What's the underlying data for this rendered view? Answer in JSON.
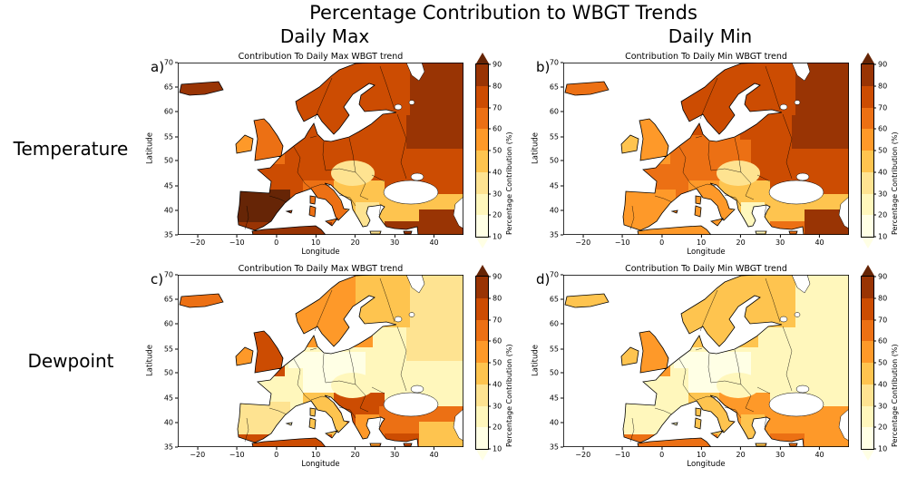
{
  "figure": {
    "title": "Percentage Contribution to WBGT Trends",
    "column_headers": [
      "Daily Max",
      "Daily Min"
    ],
    "row_labels": [
      "Temperature",
      "Dewpoint"
    ]
  },
  "axes": {
    "x_label": "Longitude",
    "y_label": "Latitude",
    "x_ticks": [
      {
        "label": "−20",
        "pos": 6.9
      },
      {
        "label": "−10",
        "pos": 20.7
      },
      {
        "label": "0",
        "pos": 34.5
      },
      {
        "label": "10",
        "pos": 48.3
      },
      {
        "label": "20",
        "pos": 62.1
      },
      {
        "label": "30",
        "pos": 75.9
      },
      {
        "label": "40",
        "pos": 89.7
      }
    ],
    "y_ticks": [
      {
        "label": "70",
        "pos": 0
      },
      {
        "label": "65",
        "pos": 14.3
      },
      {
        "label": "60",
        "pos": 28.6
      },
      {
        "label": "55",
        "pos": 42.9
      },
      {
        "label": "50",
        "pos": 57.1
      },
      {
        "label": "45",
        "pos": 71.4
      },
      {
        "label": "40",
        "pos": 85.7
      },
      {
        "label": "35",
        "pos": 100
      }
    ]
  },
  "colorbar": {
    "label": "Percentage Contribution (%)",
    "ticks": [
      {
        "label": "90",
        "pos": 0
      },
      {
        "label": "80",
        "pos": 12.5
      },
      {
        "label": "70",
        "pos": 25
      },
      {
        "label": "60",
        "pos": 37.5
      },
      {
        "label": "50",
        "pos": 50
      },
      {
        "label": "40",
        "pos": 62.5
      },
      {
        "label": "30",
        "pos": 75
      },
      {
        "label": "20",
        "pos": 87.5
      },
      {
        "label": "10",
        "pos": 100
      }
    ],
    "colors_top_to_bottom": [
      "#993404",
      "#cc4c02",
      "#ec7014",
      "#fe9929",
      "#fec44f",
      "#fee391",
      "#fff7bc",
      "#ffffe5"
    ],
    "over_color": "#662506",
    "under_color": "#ffffe5"
  },
  "panels": [
    {
      "letter": "a)",
      "title": "Contribution To Daily Max WBGT trend",
      "region_colors": {
        "base": "#cc4c02",
        "east_europe": "#cc4c02",
        "ne_russia": "#993404",
        "scandinavia": "#cc4c02",
        "finland": "#cc4c02",
        "central": "#cc4c02",
        "france": "#cc4c02",
        "iberia": "#662506",
        "italy": "#ec7014",
        "balkans": "#fec44f",
        "pannonia": "#fee391",
        "greece": "#fee391",
        "turkey": "#fec44f",
        "turkey_south": "#993404",
        "mideast": "#993404",
        "africa": "#993404",
        "britain": "#ec7014",
        "ireland": "#fe9929",
        "iceland": "#993404"
      }
    },
    {
      "letter": "b)",
      "title": "Contribution To Daily Min WBGT trend",
      "region_colors": {
        "base": "#ec7014",
        "east_europe": "#cc4c02",
        "ne_russia": "#993404",
        "scandinavia": "#cc4c02",
        "finland": "#cc4c02",
        "central": "#ec7014",
        "france": "#ec7014",
        "iberia": "#fe9929",
        "italy": "#fe9929",
        "balkans": "#fec44f",
        "pannonia": "#fee391",
        "greece": "#fff7bc",
        "turkey": "#fec44f",
        "turkey_south": "#ec7014",
        "mideast": "#993404",
        "africa": "#fe9929",
        "britain": "#fe9929",
        "ireland": "#fec44f",
        "iceland": "#ec7014"
      }
    },
    {
      "letter": "c)",
      "title": "Contribution To Daily Max WBGT trend",
      "region_colors": {
        "base": "#fff7bc",
        "east_europe": "#fff7bc",
        "ne_russia": "#fee391",
        "scandinavia": "#fe9929",
        "finland": "#fec44f",
        "central": "#ffffe5",
        "france": "#fff7bc",
        "iberia": "#fee391",
        "italy": "#fec44f",
        "balkans": "#cc4c02",
        "pannonia": "#fff7bc",
        "greece": "#fe9929",
        "turkey": "#ec7014",
        "turkey_south": "#cc4c02",
        "mideast": "#fec44f",
        "africa": "#cc4c02",
        "britain": "#cc4c02",
        "ireland": "#fe9929",
        "iceland": "#ec7014"
      }
    },
    {
      "letter": "d)",
      "title": "Contribution To Daily Min WBGT trend",
      "region_colors": {
        "base": "#fff7bc",
        "east_europe": "#fff7bc",
        "ne_russia": "#fff7bc",
        "scandinavia": "#fec44f",
        "finland": "#fec44f",
        "central": "#ffffe5",
        "france": "#fff7bc",
        "iberia": "#fff7bc",
        "italy": "#fec44f",
        "balkans": "#fe9929",
        "pannonia": "#fff7bc",
        "greece": "#fec44f",
        "turkey": "#fe9929",
        "turkey_south": "#ec7014",
        "mideast": "#fe9929",
        "africa": "#ec7014",
        "britain": "#fe9929",
        "ireland": "#fec44f",
        "iceland": "#fec44f"
      }
    }
  ],
  "chart_data": {
    "type": "heatmap",
    "figure_title": "Percentage Contribution to WBGT Trends",
    "colormap": "YlOrBr (pale yellow = low %, dark brown = high %)",
    "colorbar_label": "Percentage Contribution (%)",
    "colorbar_ticks": [
      10,
      20,
      30,
      40,
      50,
      60,
      70,
      80,
      90
    ],
    "xlabel": "Longitude",
    "ylabel": "Latitude",
    "xlim": [
      -25,
      47.5
    ],
    "ylim": [
      35,
      70
    ],
    "x_ticks": [
      -20,
      -10,
      0,
      10,
      20,
      30,
      40
    ],
    "y_ticks": [
      35,
      40,
      45,
      50,
      55,
      60,
      65,
      70
    ],
    "panels": [
      {
        "id": "a",
        "row": "Temperature",
        "column": "Daily Max",
        "title": "Contribution To Daily Max WBGT trend",
        "approx_values_percent": {
          "Iberia": 85,
          "France": 75,
          "British Isles": 65,
          "Ireland": 55,
          "Iceland": 80,
          "Scandinavia": 75,
          "NE Europe / Russia": 80,
          "Central Europe": 75,
          "Pannonian Basin": 35,
          "Balkans": 45,
          "Greece": 35,
          "Turkey": 45,
          "Southern Turkey coast": 85,
          "North Africa": 85
        }
      },
      {
        "id": "b",
        "row": "Temperature",
        "column": "Daily Min",
        "title": "Contribution To Daily Min WBGT trend",
        "approx_values_percent": {
          "Iberia": 55,
          "France": 65,
          "British Isles": 55,
          "Ireland": 45,
          "Iceland": 65,
          "Scandinavia": 75,
          "NE Europe / Russia": 85,
          "Central Europe": 65,
          "Pannonian Basin": 35,
          "Balkans": 45,
          "Greece": 25,
          "Turkey": 45,
          "Southern Turkey coast": 65,
          "North Africa": 55
        }
      },
      {
        "id": "c",
        "row": "Dewpoint",
        "column": "Daily Max",
        "title": "Contribution To Daily Max WBGT trend",
        "approx_values_percent": {
          "Iberia": 35,
          "France": 25,
          "British Isles": 75,
          "Ireland": 55,
          "Iceland": 65,
          "Scandinavia": 55,
          "NE Europe / Russia": 30,
          "Central Europe": 15,
          "Pannonian Basin": 25,
          "Balkans": 75,
          "Greece": 55,
          "Turkey": 65,
          "Southern Turkey coast": 75,
          "North Africa": 75
        }
      },
      {
        "id": "d",
        "row": "Dewpoint",
        "column": "Daily Min",
        "title": "Contribution To Daily Min WBGT trend",
        "approx_values_percent": {
          "Iberia": 25,
          "France": 25,
          "British Isles": 55,
          "Ireland": 45,
          "Iceland": 45,
          "Scandinavia": 45,
          "NE Europe / Russia": 25,
          "Central Europe": 15,
          "Pannonian Basin": 25,
          "Balkans": 55,
          "Greece": 45,
          "Turkey": 55,
          "Southern Turkey coast": 65,
          "North Africa": 65
        }
      }
    ]
  }
}
